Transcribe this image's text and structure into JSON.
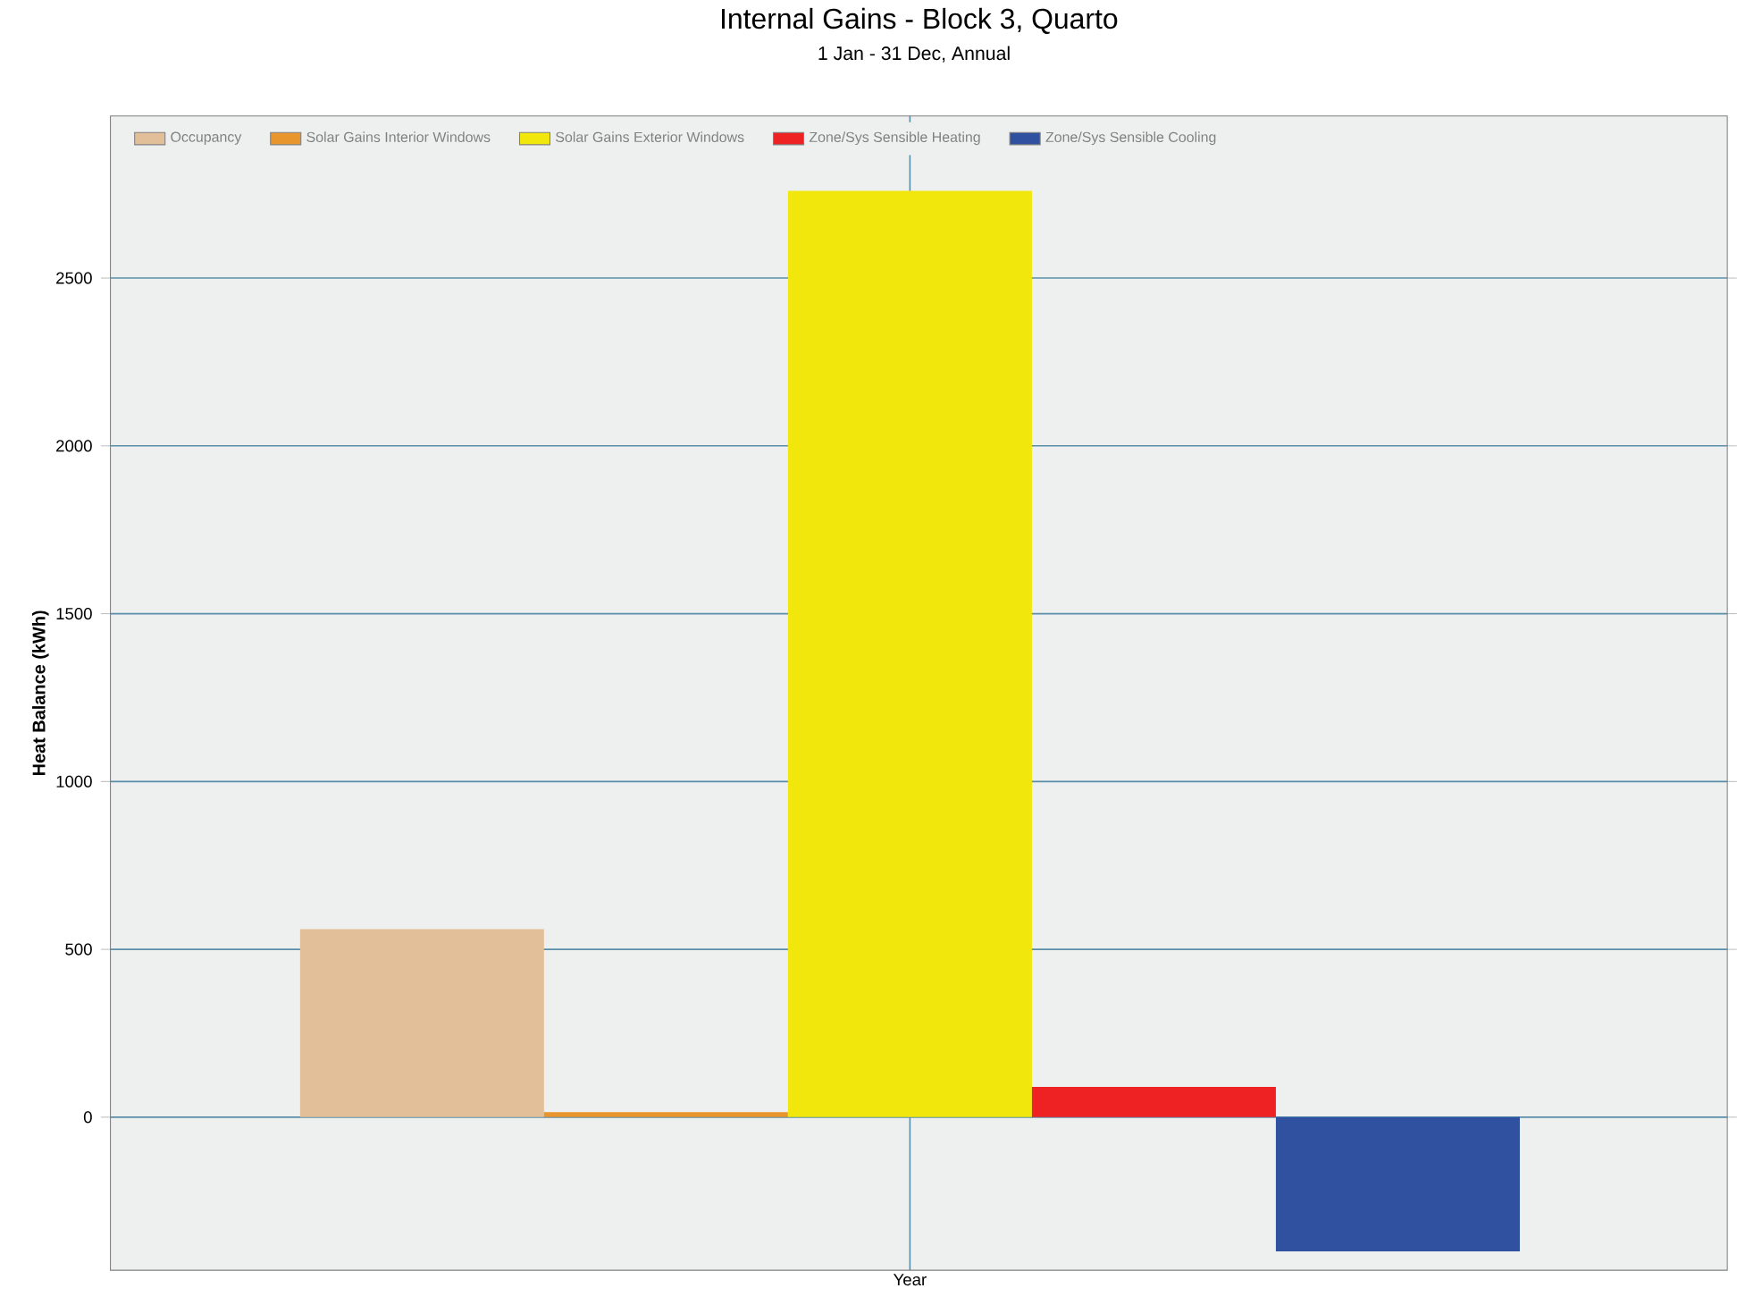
{
  "chart_data": {
    "type": "bar",
    "title": "Internal Gains - Block 3, Quarto",
    "subtitle": "1 Jan - 31 Dec, Annual",
    "ylabel": "Heat Balance (kWh)",
    "categories": [
      "Year"
    ],
    "series": [
      {
        "name": "Occupancy",
        "color": "#e2bf98",
        "values": [
          560
        ]
      },
      {
        "name": "Solar Gains Interior Windows",
        "color": "#e8952e",
        "values": [
          15
        ]
      },
      {
        "name": "Solar Gains Exterior Windows",
        "color": "#f2e70d",
        "values": [
          2760
        ]
      },
      {
        "name": "Zone/Sys Sensible Heating",
        "color": "#ee2222",
        "values": [
          90
        ]
      },
      {
        "name": "Zone/Sys Sensible Cooling",
        "color": "#3050a0",
        "values": [
          -400
        ]
      }
    ],
    "ylim": [
      -456,
      2983
    ],
    "yticks": [
      0,
      500,
      1000,
      1500,
      2000,
      2500
    ],
    "grid": true,
    "legend": "top left"
  }
}
